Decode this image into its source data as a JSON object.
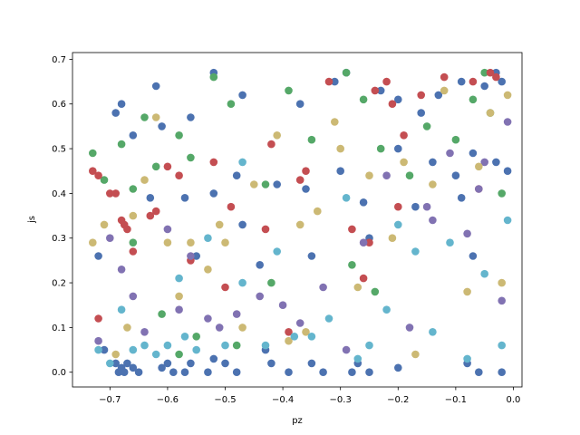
{
  "chart_data": {
    "type": "scatter",
    "title": "",
    "xlabel": "pz",
    "ylabel": "js",
    "xlim": [
      -0.765,
      0.015
    ],
    "ylim": [
      -0.033,
      0.715
    ],
    "x_ticks": [
      -0.7,
      -0.6,
      -0.5,
      -0.4,
      -0.3,
      -0.2,
      -0.1,
      0.0
    ],
    "x_tick_labels": [
      "−0.7",
      "−0.6",
      "−0.5",
      "−0.4",
      "−0.3",
      "−0.2",
      "−0.1",
      "0.0"
    ],
    "y_ticks": [
      0.0,
      0.1,
      0.2,
      0.3,
      0.4,
      0.5,
      0.6,
      0.7
    ],
    "y_tick_labels": [
      "0.0",
      "0.1",
      "0.2",
      "0.3",
      "0.4",
      "0.5",
      "0.6",
      "0.7"
    ],
    "grid": false,
    "legend": "none",
    "series": [
      {
        "color": "#4c72b0",
        "points": [
          [
            -0.69,
            0.58
          ],
          [
            -0.68,
            0.6
          ],
          [
            -0.66,
            0.53
          ],
          [
            -0.62,
            0.64
          ],
          [
            -0.61,
            0.55
          ],
          [
            -0.56,
            0.57
          ],
          [
            -0.52,
            0.67
          ],
          [
            -0.48,
            0.44
          ],
          [
            -0.47,
            0.62
          ],
          [
            -0.37,
            0.6
          ],
          [
            -0.31,
            0.65
          ],
          [
            -0.29,
            0.67
          ],
          [
            -0.23,
            0.63
          ],
          [
            -0.2,
            0.61
          ],
          [
            -0.16,
            0.58
          ],
          [
            -0.13,
            0.62
          ],
          [
            -0.09,
            0.65
          ],
          [
            -0.05,
            0.64
          ],
          [
            -0.03,
            0.67
          ],
          [
            -0.02,
            0.65
          ],
          [
            -0.72,
            0.26
          ],
          [
            -0.71,
            0.05
          ],
          [
            -0.69,
            0.02
          ],
          [
            -0.685,
            0.0
          ],
          [
            -0.68,
            0.01
          ],
          [
            -0.675,
            0.0
          ],
          [
            -0.67,
            0.02
          ],
          [
            -0.66,
            0.01
          ],
          [
            -0.65,
            0.0
          ],
          [
            -0.61,
            0.01
          ],
          [
            -0.6,
            0.02
          ],
          [
            -0.59,
            0.0
          ],
          [
            -0.57,
            0.0
          ],
          [
            -0.56,
            0.02
          ],
          [
            -0.53,
            0.0
          ],
          [
            -0.52,
            0.03
          ],
          [
            -0.5,
            0.02
          ],
          [
            -0.48,
            0.0
          ],
          [
            -0.43,
            0.05
          ],
          [
            -0.42,
            0.02
          ],
          [
            -0.39,
            0.0
          ],
          [
            -0.35,
            0.02
          ],
          [
            -0.33,
            0.0
          ],
          [
            -0.28,
            0.0
          ],
          [
            -0.27,
            0.02
          ],
          [
            -0.25,
            0.0
          ],
          [
            -0.2,
            0.01
          ],
          [
            -0.08,
            0.02
          ],
          [
            -0.06,
            0.0
          ],
          [
            -0.02,
            0.0
          ],
          [
            -0.63,
            0.39
          ],
          [
            -0.57,
            0.39
          ],
          [
            -0.52,
            0.4
          ],
          [
            -0.47,
            0.33
          ],
          [
            -0.41,
            0.42
          ],
          [
            -0.36,
            0.41
          ],
          [
            -0.3,
            0.45
          ],
          [
            -0.26,
            0.38
          ],
          [
            -0.2,
            0.5
          ],
          [
            -0.14,
            0.47
          ],
          [
            -0.1,
            0.44
          ],
          [
            -0.07,
            0.49
          ],
          [
            -0.03,
            0.47
          ],
          [
            -0.01,
            0.45
          ],
          [
            -0.09,
            0.39
          ],
          [
            -0.55,
            0.26
          ],
          [
            -0.44,
            0.24
          ],
          [
            -0.35,
            0.26
          ],
          [
            -0.25,
            0.3
          ],
          [
            -0.17,
            0.37
          ],
          [
            -0.07,
            0.26
          ]
        ]
      },
      {
        "color": "#55a868",
        "points": [
          [
            -0.73,
            0.49
          ],
          [
            -0.71,
            0.43
          ],
          [
            -0.68,
            0.51
          ],
          [
            -0.66,
            0.41
          ],
          [
            -0.64,
            0.57
          ],
          [
            -0.62,
            0.46
          ],
          [
            -0.58,
            0.53
          ],
          [
            -0.56,
            0.48
          ],
          [
            -0.52,
            0.66
          ],
          [
            -0.49,
            0.6
          ],
          [
            -0.43,
            0.42
          ],
          [
            -0.39,
            0.63
          ],
          [
            -0.35,
            0.52
          ],
          [
            -0.29,
            0.67
          ],
          [
            -0.26,
            0.61
          ],
          [
            -0.23,
            0.5
          ],
          [
            -0.18,
            0.44
          ],
          [
            -0.15,
            0.55
          ],
          [
            -0.1,
            0.52
          ],
          [
            -0.07,
            0.61
          ],
          [
            -0.05,
            0.67
          ],
          [
            -0.04,
            0.58
          ],
          [
            -0.02,
            0.4
          ],
          [
            -0.66,
            0.29
          ],
          [
            -0.61,
            0.13
          ],
          [
            -0.58,
            0.04
          ],
          [
            -0.55,
            0.08
          ],
          [
            -0.48,
            0.06
          ],
          [
            -0.42,
            0.2
          ],
          [
            -0.28,
            0.24
          ],
          [
            -0.24,
            0.18
          ]
        ]
      },
      {
        "color": "#c44e52",
        "points": [
          [
            -0.73,
            0.45
          ],
          [
            -0.72,
            0.44
          ],
          [
            -0.7,
            0.4
          ],
          [
            -0.69,
            0.4
          ],
          [
            -0.68,
            0.34
          ],
          [
            -0.675,
            0.33
          ],
          [
            -0.67,
            0.32
          ],
          [
            -0.66,
            0.27
          ],
          [
            -0.63,
            0.35
          ],
          [
            -0.62,
            0.36
          ],
          [
            -0.6,
            0.46
          ],
          [
            -0.58,
            0.44
          ],
          [
            -0.56,
            0.25
          ],
          [
            -0.52,
            0.47
          ],
          [
            -0.49,
            0.37
          ],
          [
            -0.43,
            0.32
          ],
          [
            -0.42,
            0.51
          ],
          [
            -0.37,
            0.43
          ],
          [
            -0.36,
            0.45
          ],
          [
            -0.32,
            0.65
          ],
          [
            -0.28,
            0.32
          ],
          [
            -0.26,
            0.21
          ],
          [
            -0.24,
            0.63
          ],
          [
            -0.22,
            0.65
          ],
          [
            -0.21,
            0.6
          ],
          [
            -0.19,
            0.53
          ],
          [
            -0.16,
            0.62
          ],
          [
            -0.12,
            0.66
          ],
          [
            -0.07,
            0.65
          ],
          [
            -0.06,
            0.41
          ],
          [
            -0.04,
            0.67
          ],
          [
            -0.03,
            0.66
          ],
          [
            -0.72,
            0.12
          ],
          [
            -0.5,
            0.19
          ],
          [
            -0.39,
            0.09
          ],
          [
            -0.2,
            0.37
          ],
          [
            -0.25,
            0.29
          ]
        ]
      },
      {
        "color": "#8172b2",
        "points": [
          [
            -0.72,
            0.07
          ],
          [
            -0.7,
            0.3
          ],
          [
            -0.68,
            0.23
          ],
          [
            -0.66,
            0.17
          ],
          [
            -0.64,
            0.09
          ],
          [
            -0.6,
            0.32
          ],
          [
            -0.58,
            0.14
          ],
          [
            -0.56,
            0.26
          ],
          [
            -0.53,
            0.12
          ],
          [
            -0.51,
            0.1
          ],
          [
            -0.48,
            0.13
          ],
          [
            -0.44,
            0.17
          ],
          [
            -0.4,
            0.15
          ],
          [
            -0.37,
            0.11
          ],
          [
            -0.33,
            0.19
          ],
          [
            -0.29,
            0.05
          ],
          [
            -0.26,
            0.29
          ],
          [
            -0.22,
            0.44
          ],
          [
            -0.18,
            0.1
          ],
          [
            -0.15,
            0.37
          ],
          [
            -0.11,
            0.49
          ],
          [
            -0.08,
            0.31
          ],
          [
            -0.06,
            0.41
          ],
          [
            -0.05,
            0.47
          ],
          [
            -0.02,
            0.16
          ],
          [
            -0.01,
            0.56
          ],
          [
            -0.14,
            0.34
          ]
        ]
      },
      {
        "color": "#ccb974",
        "points": [
          [
            -0.73,
            0.29
          ],
          [
            -0.71,
            0.33
          ],
          [
            -0.69,
            0.04
          ],
          [
            -0.67,
            0.1
          ],
          [
            -0.66,
            0.35
          ],
          [
            -0.64,
            0.43
          ],
          [
            -0.62,
            0.57
          ],
          [
            -0.6,
            0.29
          ],
          [
            -0.58,
            0.17
          ],
          [
            -0.56,
            0.29
          ],
          [
            -0.53,
            0.23
          ],
          [
            -0.51,
            0.33
          ],
          [
            -0.5,
            0.29
          ],
          [
            -0.47,
            0.1
          ],
          [
            -0.45,
            0.42
          ],
          [
            -0.41,
            0.53
          ],
          [
            -0.39,
            0.07
          ],
          [
            -0.37,
            0.33
          ],
          [
            -0.34,
            0.36
          ],
          [
            -0.31,
            0.56
          ],
          [
            -0.3,
            0.5
          ],
          [
            -0.27,
            0.19
          ],
          [
            -0.25,
            0.44
          ],
          [
            -0.21,
            0.3
          ],
          [
            -0.19,
            0.47
          ],
          [
            -0.17,
            0.04
          ],
          [
            -0.14,
            0.42
          ],
          [
            -0.12,
            0.63
          ],
          [
            -0.08,
            0.18
          ],
          [
            -0.06,
            0.46
          ],
          [
            -0.04,
            0.58
          ],
          [
            -0.02,
            0.2
          ],
          [
            -0.01,
            0.62
          ],
          [
            -0.36,
            0.09
          ]
        ]
      },
      {
        "color": "#64b5cd",
        "points": [
          [
            -0.72,
            0.05
          ],
          [
            -0.7,
            0.02
          ],
          [
            -0.68,
            0.14
          ],
          [
            -0.66,
            0.05
          ],
          [
            -0.64,
            0.06
          ],
          [
            -0.62,
            0.04
          ],
          [
            -0.6,
            0.06
          ],
          [
            -0.57,
            0.08
          ],
          [
            -0.55,
            0.05
          ],
          [
            -0.53,
            0.3
          ],
          [
            -0.5,
            0.06
          ],
          [
            -0.47,
            0.2
          ],
          [
            -0.43,
            0.06
          ],
          [
            -0.41,
            0.27
          ],
          [
            -0.38,
            0.08
          ],
          [
            -0.35,
            0.08
          ],
          [
            -0.32,
            0.12
          ],
          [
            -0.29,
            0.39
          ],
          [
            -0.27,
            0.03
          ],
          [
            -0.25,
            0.06
          ],
          [
            -0.22,
            0.14
          ],
          [
            -0.2,
            0.33
          ],
          [
            -0.17,
            0.27
          ],
          [
            -0.14,
            0.09
          ],
          [
            -0.11,
            0.29
          ],
          [
            -0.08,
            0.03
          ],
          [
            -0.05,
            0.22
          ],
          [
            -0.02,
            0.06
          ],
          [
            -0.01,
            0.34
          ],
          [
            -0.58,
            0.21
          ],
          [
            -0.47,
            0.47
          ]
        ]
      }
    ]
  }
}
